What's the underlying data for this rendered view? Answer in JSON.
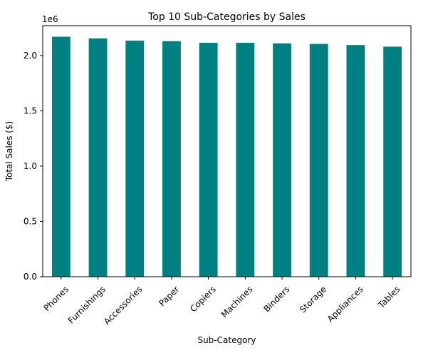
{
  "chart_data": {
    "type": "bar",
    "title": "Top 10 Sub-Categories by Sales",
    "xlabel": "Sub-Category",
    "ylabel": "Total Sales ($)",
    "y_offset_label": "1e6",
    "categories": [
      "Phones",
      "Furnishings",
      "Accessories",
      "Paper",
      "Copiers",
      "Machines",
      "Binders",
      "Storage",
      "Appliances",
      "Tables"
    ],
    "values": [
      2.17,
      2.155,
      2.135,
      2.13,
      2.115,
      2.115,
      2.11,
      2.105,
      2.095,
      2.08
    ],
    "value_unit_multiplier": 1000000,
    "ylim": [
      0,
      2.27
    ],
    "yticks": [
      0.0,
      0.5,
      1.0,
      1.5,
      2.0
    ],
    "ytick_labels": [
      "0.0",
      "0.5",
      "1.0",
      "1.5",
      "2.0"
    ],
    "grid": false,
    "legend": "none",
    "bar_color": "#008080"
  }
}
